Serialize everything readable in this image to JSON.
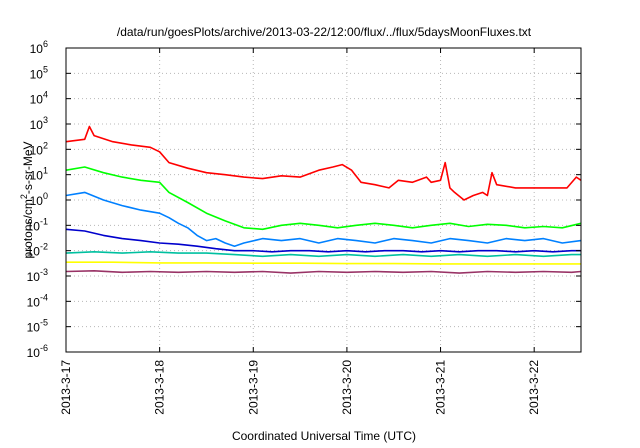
{
  "chart_data": {
    "type": "line",
    "title": "/data/run/goesPlots/archive/2013-03-22/12:00/flux/../flux/5daysMoonFluxes.txt",
    "xlabel": "Coordinated Universal Time (UTC)",
    "ylabel_main": "protons/cm",
    "ylabel_sup": "2",
    "ylabel_rest": "-s-sr-MeV",
    "yscale": "log",
    "ylim": [
      1e-06,
      1000000.0
    ],
    "xlim": [
      0,
      5.5
    ],
    "grid": true,
    "legend": "none",
    "y_ticks": [
      {
        "exp": -6,
        "base": "10",
        "sup": "-6"
      },
      {
        "exp": -5,
        "base": "10",
        "sup": "-5"
      },
      {
        "exp": -4,
        "base": "10",
        "sup": "-4"
      },
      {
        "exp": -3,
        "base": "10",
        "sup": "-3"
      },
      {
        "exp": -2,
        "base": "10",
        "sup": "-2"
      },
      {
        "exp": -1,
        "base": "10",
        "sup": "-1"
      },
      {
        "exp": 0,
        "base": "10",
        "sup": "0"
      },
      {
        "exp": 1,
        "base": "10",
        "sup": "1"
      },
      {
        "exp": 2,
        "base": "10",
        "sup": "2"
      },
      {
        "exp": 3,
        "base": "10",
        "sup": "3"
      },
      {
        "exp": 4,
        "base": "10",
        "sup": "4"
      },
      {
        "exp": 5,
        "base": "10",
        "sup": "5"
      },
      {
        "exp": 6,
        "base": "10",
        "sup": "6"
      }
    ],
    "x_ticks": [
      {
        "day": 0,
        "label": "2013-3-17"
      },
      {
        "day": 1,
        "label": "2013-3-18"
      },
      {
        "day": 2,
        "label": "2013-3-19"
      },
      {
        "day": 3,
        "label": "2013-3-20"
      },
      {
        "day": 4,
        "label": "2013-3-21"
      },
      {
        "day": 5,
        "label": "2013-3-22"
      }
    ],
    "series": [
      {
        "color": "#ff0000",
        "points": [
          [
            0,
            200
          ],
          [
            0.2,
            250
          ],
          [
            0.25,
            800
          ],
          [
            0.3,
            350
          ],
          [
            0.5,
            200
          ],
          [
            0.7,
            150
          ],
          [
            0.9,
            120
          ],
          [
            1.0,
            80
          ],
          [
            1.1,
            30
          ],
          [
            1.3,
            18
          ],
          [
            1.5,
            12
          ],
          [
            1.7,
            10
          ],
          [
            1.9,
            8
          ],
          [
            2.1,
            7
          ],
          [
            2.3,
            9
          ],
          [
            2.5,
            8
          ],
          [
            2.7,
            15
          ],
          [
            2.85,
            20
          ],
          [
            2.95,
            25
          ],
          [
            3.05,
            15
          ],
          [
            3.15,
            5
          ],
          [
            3.3,
            4
          ],
          [
            3.45,
            3
          ],
          [
            3.55,
            6
          ],
          [
            3.7,
            5
          ],
          [
            3.85,
            8
          ],
          [
            3.9,
            5
          ],
          [
            4.0,
            6
          ],
          [
            4.05,
            30
          ],
          [
            4.1,
            3
          ],
          [
            4.15,
            2
          ],
          [
            4.25,
            1
          ],
          [
            4.35,
            1.5
          ],
          [
            4.45,
            2
          ],
          [
            4.5,
            1.5
          ],
          [
            4.55,
            12
          ],
          [
            4.6,
            4
          ],
          [
            4.8,
            3
          ],
          [
            5.0,
            3
          ],
          [
            5.2,
            3
          ],
          [
            5.35,
            3
          ],
          [
            5.45,
            8
          ],
          [
            5.5,
            6
          ]
        ]
      },
      {
        "color": "#00ff00",
        "points": [
          [
            0,
            15
          ],
          [
            0.2,
            20
          ],
          [
            0.4,
            12
          ],
          [
            0.6,
            8
          ],
          [
            0.8,
            6
          ],
          [
            1.0,
            5
          ],
          [
            1.1,
            2
          ],
          [
            1.3,
            0.8
          ],
          [
            1.5,
            0.3
          ],
          [
            1.7,
            0.15
          ],
          [
            1.9,
            0.08
          ],
          [
            2.1,
            0.07
          ],
          [
            2.3,
            0.1
          ],
          [
            2.5,
            0.12
          ],
          [
            2.7,
            0.1
          ],
          [
            2.9,
            0.08
          ],
          [
            3.1,
            0.1
          ],
          [
            3.3,
            0.12
          ],
          [
            3.5,
            0.1
          ],
          [
            3.7,
            0.08
          ],
          [
            3.9,
            0.1
          ],
          [
            4.1,
            0.12
          ],
          [
            4.3,
            0.09
          ],
          [
            4.5,
            0.11
          ],
          [
            4.7,
            0.1
          ],
          [
            4.9,
            0.08
          ],
          [
            5.1,
            0.09
          ],
          [
            5.3,
            0.08
          ],
          [
            5.5,
            0.12
          ]
        ]
      },
      {
        "color": "#0080ff",
        "points": [
          [
            0,
            1.5
          ],
          [
            0.2,
            2
          ],
          [
            0.4,
            1
          ],
          [
            0.6,
            0.6
          ],
          [
            0.8,
            0.4
          ],
          [
            1.0,
            0.3
          ],
          [
            1.1,
            0.2
          ],
          [
            1.2,
            0.12
          ],
          [
            1.3,
            0.08
          ],
          [
            1.4,
            0.04
          ],
          [
            1.5,
            0.025
          ],
          [
            1.6,
            0.03
          ],
          [
            1.7,
            0.02
          ],
          [
            1.8,
            0.015
          ],
          [
            1.9,
            0.02
          ],
          [
            2.1,
            0.03
          ],
          [
            2.3,
            0.025
          ],
          [
            2.5,
            0.03
          ],
          [
            2.7,
            0.02
          ],
          [
            2.9,
            0.03
          ],
          [
            3.1,
            0.025
          ],
          [
            3.3,
            0.02
          ],
          [
            3.5,
            0.03
          ],
          [
            3.7,
            0.025
          ],
          [
            3.9,
            0.02
          ],
          [
            4.1,
            0.03
          ],
          [
            4.3,
            0.025
          ],
          [
            4.5,
            0.02
          ],
          [
            4.7,
            0.03
          ],
          [
            4.9,
            0.025
          ],
          [
            5.1,
            0.03
          ],
          [
            5.3,
            0.02
          ],
          [
            5.5,
            0.025
          ]
        ]
      },
      {
        "color": "#0000cc",
        "points": [
          [
            0,
            0.07
          ],
          [
            0.2,
            0.06
          ],
          [
            0.4,
            0.04
          ],
          [
            0.6,
            0.03
          ],
          [
            0.8,
            0.025
          ],
          [
            1.0,
            0.02
          ],
          [
            1.2,
            0.018
          ],
          [
            1.4,
            0.015
          ],
          [
            1.6,
            0.012
          ],
          [
            1.8,
            0.01
          ],
          [
            2.0,
            0.01
          ],
          [
            2.2,
            0.009
          ],
          [
            2.4,
            0.01
          ],
          [
            2.6,
            0.01
          ],
          [
            2.8,
            0.009
          ],
          [
            3.0,
            0.01
          ],
          [
            3.2,
            0.009
          ],
          [
            3.4,
            0.01
          ],
          [
            3.6,
            0.01
          ],
          [
            3.8,
            0.009
          ],
          [
            4.0,
            0.01
          ],
          [
            4.2,
            0.009
          ],
          [
            4.4,
            0.01
          ],
          [
            4.6,
            0.01
          ],
          [
            4.8,
            0.009
          ],
          [
            5.0,
            0.01
          ],
          [
            5.2,
            0.009
          ],
          [
            5.4,
            0.01
          ],
          [
            5.5,
            0.01
          ]
        ]
      },
      {
        "color": "#00c0a0",
        "points": [
          [
            0,
            0.008
          ],
          [
            0.3,
            0.009
          ],
          [
            0.6,
            0.008
          ],
          [
            0.9,
            0.009
          ],
          [
            1.2,
            0.008
          ],
          [
            1.5,
            0.008
          ],
          [
            1.8,
            0.007
          ],
          [
            2.1,
            0.006
          ],
          [
            2.4,
            0.007
          ],
          [
            2.7,
            0.006
          ],
          [
            3.0,
            0.007
          ],
          [
            3.3,
            0.006
          ],
          [
            3.6,
            0.007
          ],
          [
            3.9,
            0.006
          ],
          [
            4.2,
            0.007
          ],
          [
            4.5,
            0.006
          ],
          [
            4.8,
            0.007
          ],
          [
            5.1,
            0.006
          ],
          [
            5.4,
            0.007
          ],
          [
            5.5,
            0.007
          ]
        ]
      },
      {
        "color": "#ffff00",
        "points": [
          [
            0,
            0.0035
          ],
          [
            0.5,
            0.0035
          ],
          [
            1.0,
            0.0033
          ],
          [
            1.5,
            0.0033
          ],
          [
            2.0,
            0.0032
          ],
          [
            2.5,
            0.0032
          ],
          [
            3.0,
            0.0031
          ],
          [
            3.5,
            0.0031
          ],
          [
            4.0,
            0.003
          ],
          [
            4.5,
            0.003
          ],
          [
            5.0,
            0.003
          ],
          [
            5.5,
            0.003
          ]
        ]
      },
      {
        "color": "#993366",
        "points": [
          [
            0,
            0.0015
          ],
          [
            0.3,
            0.0016
          ],
          [
            0.6,
            0.0014
          ],
          [
            0.9,
            0.0015
          ],
          [
            1.2,
            0.0014
          ],
          [
            1.5,
            0.0015
          ],
          [
            1.8,
            0.0014
          ],
          [
            2.1,
            0.0015
          ],
          [
            2.4,
            0.0013
          ],
          [
            2.7,
            0.0015
          ],
          [
            3.0,
            0.0014
          ],
          [
            3.3,
            0.0015
          ],
          [
            3.6,
            0.0014
          ],
          [
            3.9,
            0.0015
          ],
          [
            4.2,
            0.0013
          ],
          [
            4.5,
            0.0015
          ],
          [
            4.8,
            0.0014
          ],
          [
            5.1,
            0.0015
          ],
          [
            5.4,
            0.0014
          ],
          [
            5.5,
            0.0015
          ]
        ]
      }
    ]
  }
}
